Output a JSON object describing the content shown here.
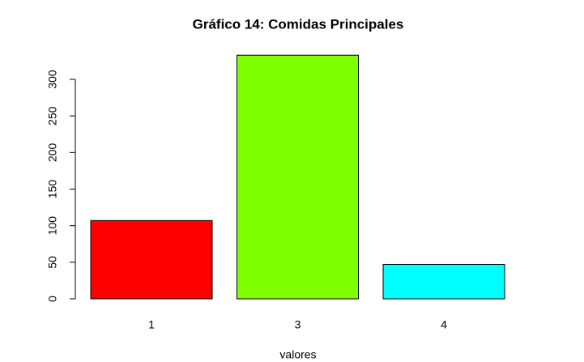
{
  "chart_data": {
    "type": "bar",
    "title": "Gráfico 14: Comidas Principales",
    "x_label": "valores",
    "categories": [
      "1",
      "3",
      "4"
    ],
    "values": [
      107,
      333,
      47
    ],
    "colors": [
      "#ff0000",
      "#7fff00",
      "#00ffff"
    ],
    "ylim": [
      0,
      333
    ],
    "yticks": [
      0,
      50,
      100,
      150,
      200,
      250,
      300
    ],
    "grid": false
  }
}
